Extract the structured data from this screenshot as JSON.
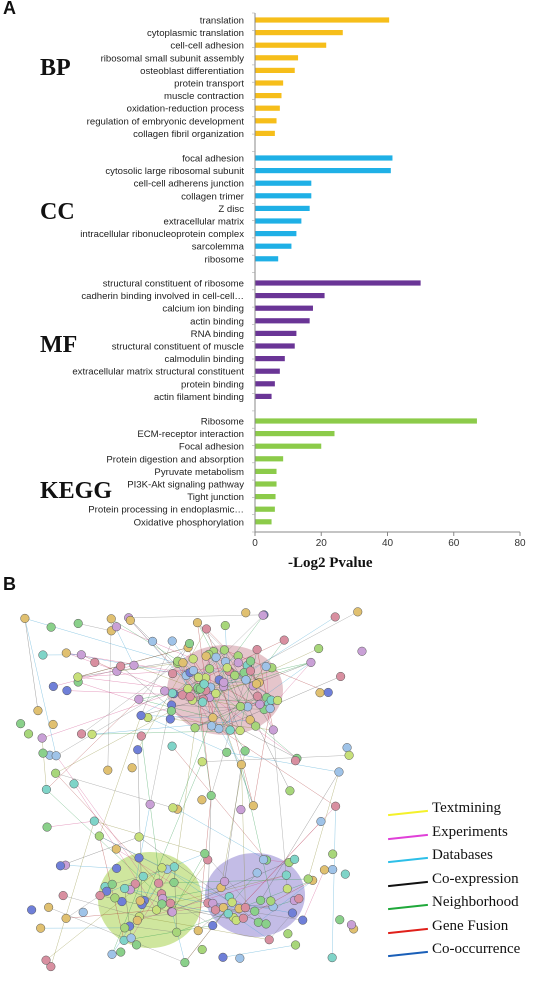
{
  "panels": {
    "a": "A",
    "b": "B"
  },
  "chart_data": {
    "type": "bar",
    "orientation": "horizontal",
    "xlabel": "-Log2 Pvalue",
    "ylabel": "",
    "xlim": [
      0,
      80
    ],
    "xticks": [
      0,
      20,
      40,
      60,
      80
    ],
    "grid": false,
    "groups": [
      {
        "name": "BP",
        "color": "#F6BE1A",
        "categories": [
          "translation",
          "cytoplasmic translation",
          "cell-cell adhesion",
          "ribosomal small subunit assembly",
          "osteoblast differentiation",
          "protein transport",
          "muscle contraction",
          "oxidation-reduction process",
          "regulation of embryonic development",
          "collagen fibril organization"
        ],
        "values": [
          40.5,
          26.5,
          21.5,
          13,
          12,
          8.5,
          8,
          7.5,
          6.5,
          6
        ]
      },
      {
        "name": "CC",
        "color": "#1FB0E6",
        "categories": [
          "focal adhesion",
          "cytosolic large ribosomal subunit",
          "cell-cell adherens junction",
          "collagen trimer",
          "Z disc",
          "extracellular matrix",
          "intracellular ribonucleoprotein complex",
          "sarcolemma",
          "ribosome"
        ],
        "values": [
          41.5,
          41,
          17,
          17,
          16.5,
          14,
          12.5,
          11,
          7
        ]
      },
      {
        "name": "MF",
        "color": "#6A3596",
        "categories": [
          "structural constituent of ribosome",
          "cadherin binding involved in cell-cell…",
          "calcium ion binding",
          "actin binding",
          "RNA binding",
          "structural constituent of muscle",
          "calmodulin binding",
          "extracellular matrix structural constituent",
          "protein binding",
          "actin filament binding"
        ],
        "values": [
          50,
          21,
          17.5,
          16.5,
          12.5,
          12,
          9,
          7.5,
          6,
          5
        ]
      },
      {
        "name": "KEGG",
        "color": "#8CCB4A",
        "categories": [
          "Ribosome",
          "ECM-receptor interaction",
          "Focal adhesion",
          "Protein digestion and absorption",
          "Pyruvate metabolism",
          "PI3K-Akt signaling pathway",
          "Tight junction",
          "Protein processing in endoplasmic…",
          "Oxidative phosphorylation"
        ],
        "values": [
          67,
          24,
          20,
          8.5,
          6.5,
          6.5,
          6.2,
          6,
          5
        ]
      }
    ]
  },
  "network": {
    "legend": [
      {
        "label": "Textmining",
        "color": "#F4F12A"
      },
      {
        "label": "Experiments",
        "color": "#E040D8"
      },
      {
        "label": "Databases",
        "color": "#2DBFE8"
      },
      {
        "label": "Co-expression",
        "color": "#111111"
      },
      {
        "label": "Neighborhood",
        "color": "#1FA83A"
      },
      {
        "label": "Gene Fusion",
        "color": "#E0201A"
      },
      {
        "label": "Co-occurrence",
        "color": "#1A5FB8"
      }
    ]
  }
}
